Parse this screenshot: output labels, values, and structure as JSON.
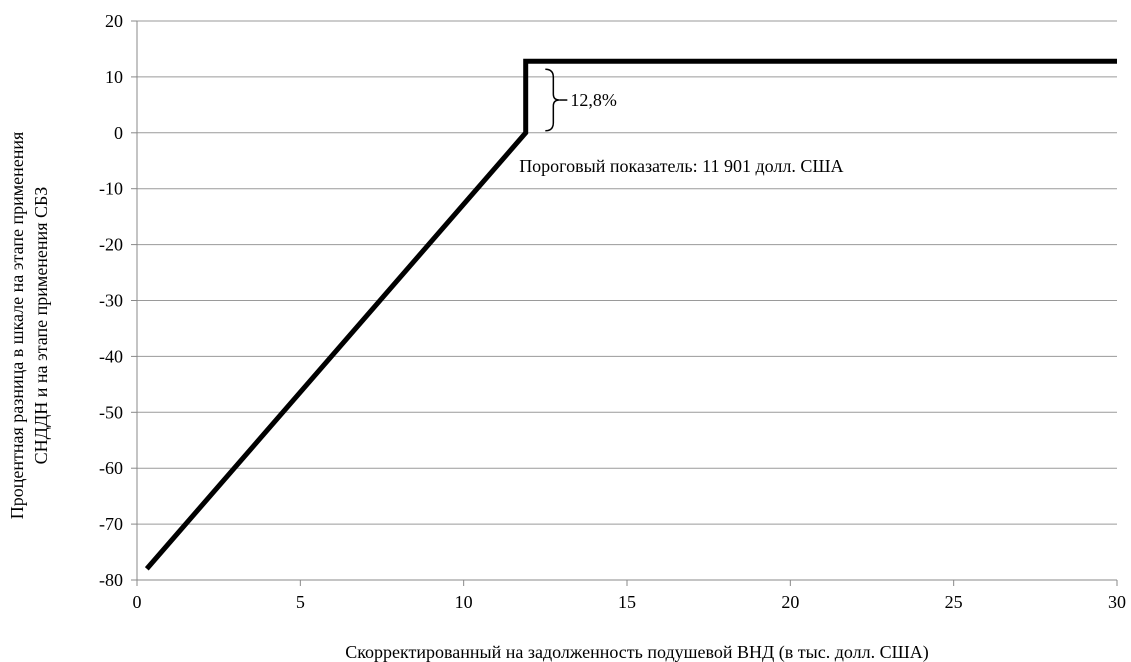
{
  "chart_data": {
    "type": "line",
    "title": "",
    "xlabel": "Скорректированный на задолженность подушевой ВНД (в тыс. долл. США)",
    "ylabel_lines": [
      "Процентная разница в шкале на этапе применения",
      "СНДДН и на этапе применения СБЗ"
    ],
    "xlim": [
      0,
      30
    ],
    "ylim": [
      -80,
      20
    ],
    "xticks": [
      0,
      5,
      10,
      15,
      20,
      25,
      30
    ],
    "yticks": [
      20,
      10,
      0,
      -10,
      -20,
      -30,
      -40,
      -50,
      -60,
      -70,
      -80
    ],
    "xtick_labels": [
      "0",
      "5",
      "10",
      "15",
      "20",
      "25",
      "30"
    ],
    "ytick_labels": [
      "20",
      "10",
      "0",
      "-10",
      "-20",
      "-30",
      "-40",
      "-50",
      "-60",
      "-70",
      "-80"
    ],
    "grid": true,
    "legend": "none",
    "series": [
      {
        "color": "#000000",
        "points": [
          {
            "x": 0.3,
            "y": -78.0
          },
          {
            "x": 11.9,
            "y": 0.0
          },
          {
            "x": 11.9,
            "y": 12.8
          },
          {
            "x": 30,
            "y": 12.8
          }
        ]
      }
    ],
    "annotations": {
      "bracket_label": "12,8%",
      "threshold_label": "Пороговый показатель: 11 901 долл. США"
    },
    "bracket": {
      "x": 12.5,
      "y_from": 0,
      "y_to": 12.8
    }
  }
}
